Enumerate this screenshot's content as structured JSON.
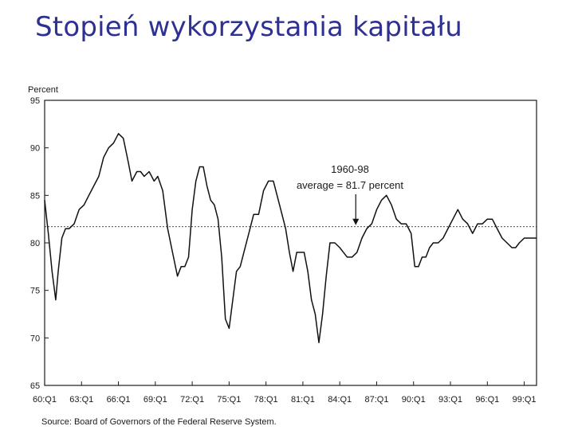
{
  "slide": {
    "title": "Stopień wykorzystania kapitału"
  },
  "chart_data": {
    "type": "line",
    "ylabel": "Percent",
    "ylim": [
      65,
      95
    ],
    "yticks": [
      65,
      70,
      75,
      80,
      85,
      90,
      95
    ],
    "xlim": [
      1960.0,
      2000.0
    ],
    "xticks": [
      {
        "label": "60:Q1",
        "value": 1960.0
      },
      {
        "label": "63:Q1",
        "value": 1963.0
      },
      {
        "label": "66:Q1",
        "value": 1966.0
      },
      {
        "label": "69:Q1",
        "value": 1969.0
      },
      {
        "label": "72:Q1",
        "value": 1972.0
      },
      {
        "label": "75:Q1",
        "value": 1975.0
      },
      {
        "label": "78:Q1",
        "value": 1978.0
      },
      {
        "label": "81:Q1",
        "value": 1981.0
      },
      {
        "label": "84:Q1",
        "value": 1984.0
      },
      {
        "label": "87:Q1",
        "value": 1987.0
      },
      {
        "label": "90:Q1",
        "value": 1990.0
      },
      {
        "label": "93:Q1",
        "value": 1993.0
      },
      {
        "label": "96:Q1",
        "value": 1996.0
      },
      {
        "label": "99:Q1",
        "value": 1999.0
      }
    ],
    "grid": false,
    "series": [
      {
        "color": "#111111",
        "x": [
          1960.0,
          1960.3,
          1960.6,
          1960.9,
          1961.1,
          1961.4,
          1961.7,
          1962.0,
          1962.4,
          1962.8,
          1963.2,
          1963.6,
          1964.0,
          1964.4,
          1964.8,
          1965.2,
          1965.6,
          1966.0,
          1966.4,
          1966.8,
          1967.1,
          1967.5,
          1967.8,
          1968.1,
          1968.5,
          1968.9,
          1969.2,
          1969.6,
          1970.0,
          1970.4,
          1970.8,
          1971.1,
          1971.4,
          1971.7,
          1972.0,
          1972.3,
          1972.6,
          1972.9,
          1973.2,
          1973.5,
          1973.8,
          1974.1,
          1974.4,
          1974.7,
          1975.0,
          1975.3,
          1975.6,
          1975.9,
          1976.2,
          1976.6,
          1977.0,
          1977.4,
          1977.8,
          1978.2,
          1978.6,
          1979.0,
          1979.3,
          1979.6,
          1979.9,
          1980.2,
          1980.5,
          1980.8,
          1981.1,
          1981.4,
          1981.7,
          1982.0,
          1982.3,
          1982.6,
          1982.9,
          1983.2,
          1983.6,
          1984.0,
          1984.3,
          1984.6,
          1985.0,
          1985.4,
          1985.8,
          1986.2,
          1986.6,
          1987.0,
          1987.4,
          1987.8,
          1988.2,
          1988.6,
          1989.0,
          1989.4,
          1989.8,
          1990.1,
          1990.4,
          1990.7,
          1991.0,
          1991.3,
          1991.6,
          1992.0,
          1992.4,
          1992.8,
          1993.2,
          1993.6,
          1994.0,
          1994.4,
          1994.8,
          1995.2,
          1995.6,
          1996.0,
          1996.4,
          1996.8,
          1997.2,
          1997.6,
          1998.0,
          1998.3,
          1998.6,
          1999.0,
          1999.3,
          1999.6,
          2000.0
        ],
        "values": [
          84.5,
          81.0,
          77.0,
          74.0,
          77.0,
          80.5,
          81.5,
          81.5,
          82.0,
          83.5,
          84.0,
          85.0,
          86.0,
          87.0,
          89.0,
          90.0,
          90.5,
          91.5,
          91.0,
          88.5,
          86.5,
          87.5,
          87.5,
          87.0,
          87.5,
          86.5,
          87.0,
          85.5,
          81.5,
          79.0,
          76.5,
          77.5,
          77.5,
          78.5,
          83.5,
          86.5,
          88.0,
          88.0,
          86.0,
          84.5,
          84.0,
          82.5,
          78.5,
          72.0,
          71.0,
          74.0,
          77.0,
          77.5,
          79.0,
          81.0,
          83.0,
          83.0,
          85.5,
          86.5,
          86.5,
          84.5,
          83.0,
          81.5,
          79.0,
          77.0,
          79.0,
          79.0,
          79.0,
          77.0,
          74.0,
          72.5,
          69.5,
          72.5,
          76.5,
          80.0,
          80.0,
          79.5,
          79.0,
          78.5,
          78.5,
          79.0,
          80.5,
          81.5,
          82.0,
          83.5,
          84.5,
          85.0,
          84.0,
          82.5,
          82.0,
          82.0,
          81.0,
          77.5,
          77.5,
          78.5,
          78.5,
          79.5,
          80.0,
          80.0,
          80.5,
          81.5,
          82.5,
          83.5,
          82.5,
          82.0,
          81.0,
          82.0,
          82.0,
          82.5,
          82.5,
          81.5,
          80.5,
          80.0,
          79.5,
          79.5,
          80.0,
          80.5,
          80.5,
          80.5,
          80.5
        ]
      }
    ],
    "reference_line": {
      "value": 81.7,
      "style": "dotted"
    },
    "annotation": {
      "line1": "1960-98",
      "line2": "average = 81.7 percent",
      "arrow_x": 1985.3
    },
    "source": "Source:  Board of Governors of the Federal Reserve System."
  }
}
